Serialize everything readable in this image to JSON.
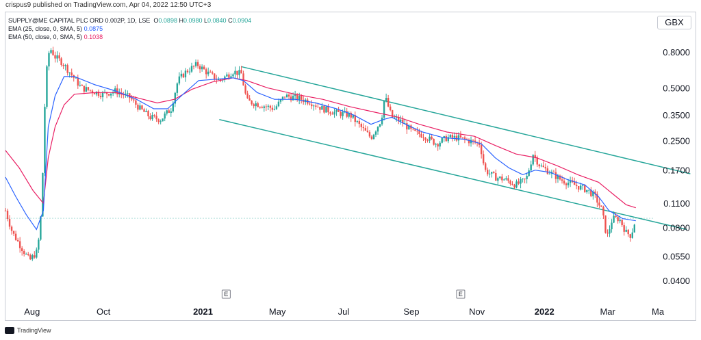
{
  "header": {
    "caption": "crispus9 published on TradingView.com, Apr 04, 2022 12:50 UTC+3"
  },
  "legend": {
    "line1_prefix": "SUPPLY@ME CAPITAL PLC ORD 0.002P, 1D, LSE",
    "o_label": "O",
    "o_val": "0.0898",
    "h_label": "H",
    "h_val": "0.0980",
    "l_label": "L",
    "l_val": "0.0840",
    "c_label": "C",
    "c_val": "0.0904",
    "ema25_label": "EMA (25, close, 0, SMA, 5)",
    "ema25_val": "0.0875",
    "ema50_label": "EMA (50, close, 0, SMA, 5)",
    "ema50_val": "0.1038"
  },
  "currency": "GBX",
  "footer": {
    "brand": "TradingView"
  },
  "colors": {
    "up": "#26a69a",
    "down": "#ef5350",
    "ema25": "#2962ff",
    "ema50": "#e91e63",
    "channel": "#26a69a"
  },
  "chart_data": {
    "type": "candlestick",
    "y_scale": "log",
    "y_ticks": [
      "0.8000",
      "0.5000",
      "0.3500",
      "0.2500",
      "0.1700",
      "0.1100",
      "0.0800",
      "0.0550",
      "0.0400"
    ],
    "x_ticks": [
      "Aug",
      "Oct",
      "2021",
      "May",
      "Jul",
      "Sep",
      "Nov",
      "2022",
      "Mar",
      "Ma"
    ],
    "events": [
      "E",
      "E"
    ],
    "last_close": 0.0904,
    "price_path": [
      [
        0,
        0.1
      ],
      [
        10,
        0.075
      ],
      [
        25,
        0.06
      ],
      [
        35,
        0.052
      ],
      [
        45,
        0.058
      ],
      [
        50,
        0.075
      ],
      [
        55,
        0.2
      ],
      [
        58,
        0.55
      ],
      [
        64,
        0.85
      ],
      [
        72,
        0.75
      ],
      [
        82,
        0.7
      ],
      [
        95,
        0.6
      ],
      [
        110,
        0.5
      ],
      [
        125,
        0.48
      ],
      [
        140,
        0.46
      ],
      [
        160,
        0.48
      ],
      [
        180,
        0.44
      ],
      [
        195,
        0.38
      ],
      [
        210,
        0.34
      ],
      [
        225,
        0.33
      ],
      [
        240,
        0.38
      ],
      [
        250,
        0.55
      ],
      [
        262,
        0.62
      ],
      [
        278,
        0.68
      ],
      [
        295,
        0.6
      ],
      [
        310,
        0.55
      ],
      [
        330,
        0.62
      ],
      [
        342,
        0.6
      ],
      [
        350,
        0.42
      ],
      [
        370,
        0.4
      ],
      [
        390,
        0.38
      ],
      [
        405,
        0.45
      ],
      [
        420,
        0.44
      ],
      [
        440,
        0.42
      ],
      [
        460,
        0.38
      ],
      [
        480,
        0.36
      ],
      [
        500,
        0.35
      ],
      [
        515,
        0.3
      ],
      [
        530,
        0.26
      ],
      [
        545,
        0.33
      ],
      [
        550,
        0.45
      ],
      [
        560,
        0.34
      ],
      [
        575,
        0.32
      ],
      [
        590,
        0.28
      ],
      [
        605,
        0.27
      ],
      [
        625,
        0.24
      ],
      [
        640,
        0.26
      ],
      [
        655,
        0.26
      ],
      [
        672,
        0.25
      ],
      [
        688,
        0.24
      ],
      [
        695,
        0.17
      ],
      [
        710,
        0.155
      ],
      [
        725,
        0.15
      ],
      [
        740,
        0.14
      ],
      [
        755,
        0.15
      ],
      [
        765,
        0.21
      ],
      [
        775,
        0.18
      ],
      [
        790,
        0.165
      ],
      [
        805,
        0.15
      ],
      [
        825,
        0.14
      ],
      [
        845,
        0.13
      ],
      [
        855,
        0.12
      ],
      [
        865,
        0.1
      ],
      [
        872,
        0.07
      ],
      [
        880,
        0.09
      ],
      [
        890,
        0.09
      ],
      [
        900,
        0.075
      ],
      [
        907,
        0.072
      ],
      [
        914,
        0.0904
      ]
    ],
    "ema25_path": [
      [
        0,
        0.155
      ],
      [
        15,
        0.12
      ],
      [
        30,
        0.095
      ],
      [
        45,
        0.078
      ],
      [
        55,
        0.1
      ],
      [
        62,
        0.3
      ],
      [
        72,
        0.45
      ],
      [
        85,
        0.58
      ],
      [
        100,
        0.58
      ],
      [
        130,
        0.52
      ],
      [
        160,
        0.48
      ],
      [
        190,
        0.43
      ],
      [
        215,
        0.38
      ],
      [
        235,
        0.38
      ],
      [
        255,
        0.45
      ],
      [
        280,
        0.55
      ],
      [
        305,
        0.56
      ],
      [
        330,
        0.57
      ],
      [
        345,
        0.55
      ],
      [
        365,
        0.47
      ],
      [
        390,
        0.43
      ],
      [
        420,
        0.43
      ],
      [
        450,
        0.41
      ],
      [
        480,
        0.38
      ],
      [
        505,
        0.35
      ],
      [
        530,
        0.31
      ],
      [
        548,
        0.33
      ],
      [
        560,
        0.34
      ],
      [
        580,
        0.31
      ],
      [
        605,
        0.28
      ],
      [
        635,
        0.26
      ],
      [
        665,
        0.255
      ],
      [
        690,
        0.24
      ],
      [
        710,
        0.2
      ],
      [
        730,
        0.175
      ],
      [
        750,
        0.16
      ],
      [
        768,
        0.17
      ],
      [
        790,
        0.165
      ],
      [
        815,
        0.15
      ],
      [
        840,
        0.14
      ],
      [
        860,
        0.12
      ],
      [
        875,
        0.1
      ],
      [
        895,
        0.09
      ],
      [
        914,
        0.0875
      ]
    ],
    "ema50_path": [
      [
        0,
        0.22
      ],
      [
        20,
        0.175
      ],
      [
        40,
        0.13
      ],
      [
        55,
        0.11
      ],
      [
        62,
        0.2
      ],
      [
        72,
        0.3
      ],
      [
        85,
        0.4
      ],
      [
        100,
        0.46
      ],
      [
        130,
        0.47
      ],
      [
        160,
        0.47
      ],
      [
        190,
        0.44
      ],
      [
        220,
        0.41
      ],
      [
        245,
        0.43
      ],
      [
        270,
        0.49
      ],
      [
        300,
        0.54
      ],
      [
        330,
        0.57
      ],
      [
        350,
        0.55
      ],
      [
        380,
        0.5
      ],
      [
        420,
        0.46
      ],
      [
        460,
        0.43
      ],
      [
        500,
        0.39
      ],
      [
        540,
        0.36
      ],
      [
        570,
        0.34
      ],
      [
        600,
        0.31
      ],
      [
        640,
        0.28
      ],
      [
        680,
        0.265
      ],
      [
        710,
        0.235
      ],
      [
        740,
        0.21
      ],
      [
        770,
        0.2
      ],
      [
        800,
        0.18
      ],
      [
        830,
        0.16
      ],
      [
        860,
        0.145
      ],
      [
        880,
        0.125
      ],
      [
        900,
        0.108
      ],
      [
        914,
        0.1038
      ]
    ]
  }
}
